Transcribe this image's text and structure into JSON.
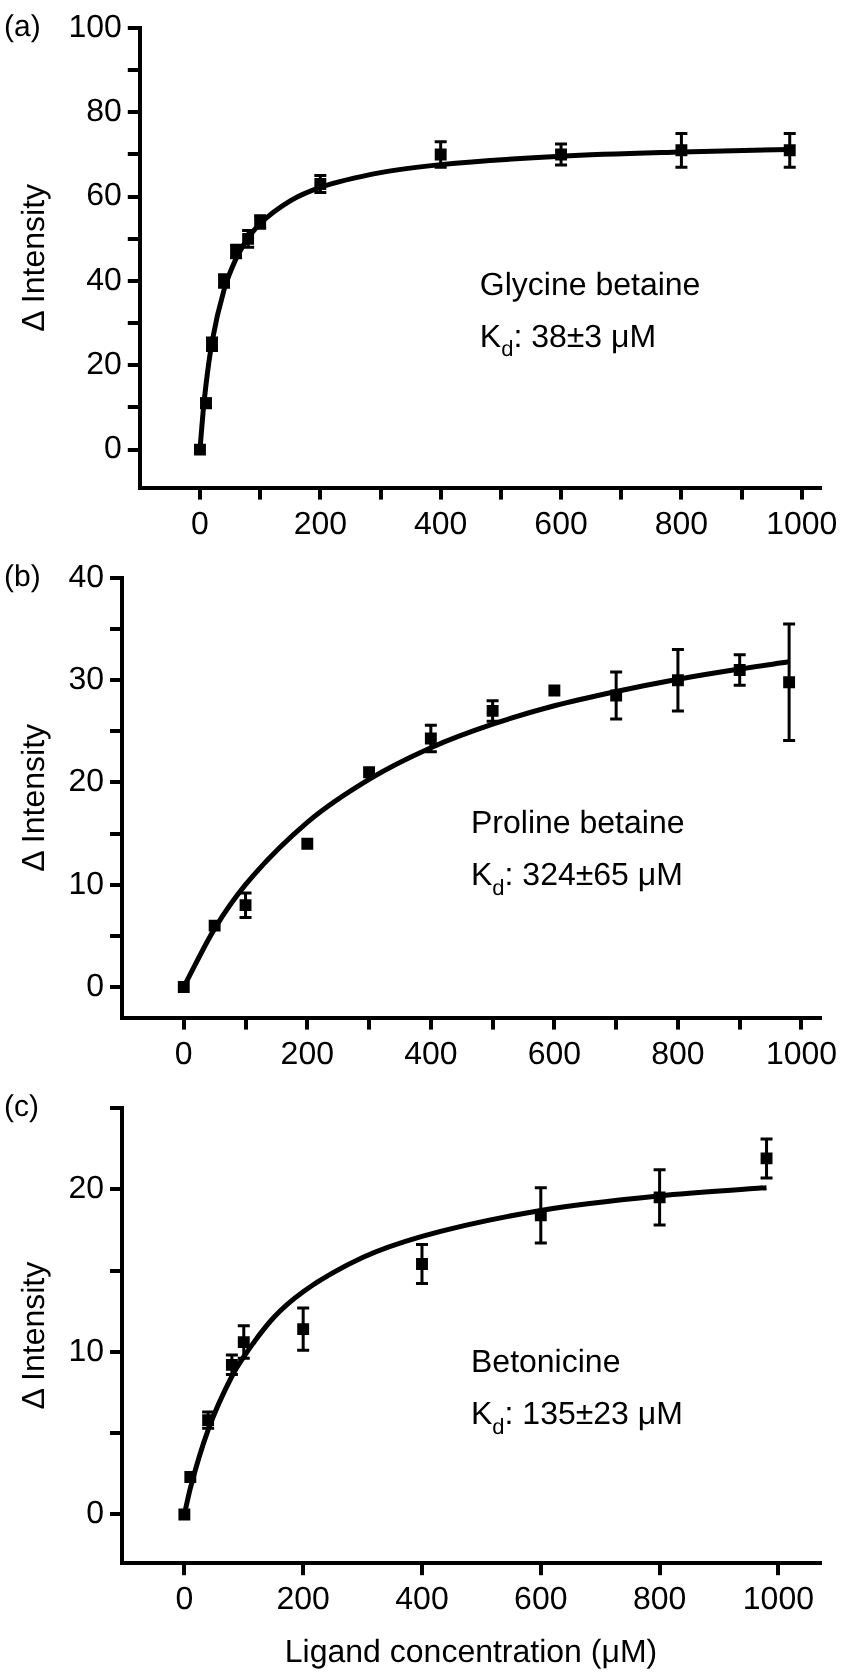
{
  "chart_data": [
    {
      "type": "scatter",
      "ylabel": "Δ Intensity",
      "annotations": [
        "(a)",
        "Glycine betaine",
        "K$_{d}$: 38±3 μM"
      ],
      "xlim": [
        -100,
        1030
      ],
      "xticks": [
        0,
        {
          "value": 100,
          "label": null
        },
        200,
        {
          "value": 300,
          "label": null
        },
        400,
        {
          "value": 500,
          "label": null
        },
        600,
        {
          "value": 700,
          "label": null
        },
        800,
        {
          "value": 900,
          "label": null
        },
        1000
      ],
      "ylim": [
        -9,
        100
      ],
      "yticks": [
        0,
        {
          "value": 10,
          "label": null
        },
        20,
        {
          "value": 30,
          "label": null
        },
        40,
        {
          "value": 50,
          "label": null
        },
        60,
        {
          "value": 70,
          "label": null
        },
        80,
        {
          "value": 90,
          "label": null
        },
        100
      ],
      "grid": false,
      "legend": false,
      "marker": "square",
      "series": [
        {
          "color": "#000000",
          "x": [
            0,
            10,
            20,
            40,
            60,
            80,
            100,
            200,
            400,
            600,
            800,
            980
          ],
          "values": [
            0,
            11,
            25,
            40,
            47,
            50,
            54,
            63,
            70,
            70,
            71,
            71
          ],
          "errors": [
            null,
            1,
            1.5,
            1.5,
            1.5,
            2,
            1.5,
            2,
            3,
            2.5,
            4,
            4
          ]
        },
        {
          "type": "line",
          "color": "#000000",
          "marker": "none",
          "x": [
            0,
            5,
            10,
            20,
            40,
            60,
            80,
            100,
            150,
            200,
            300,
            400,
            600,
            800,
            980
          ],
          "values": [
            0,
            8.6,
            15.4,
            25.5,
            37.9,
            45.3,
            50.2,
            53.6,
            59,
            62.2,
            65.7,
            67.6,
            69.6,
            70.6,
            71.2
          ]
        }
      ]
    },
    {
      "type": "scatter",
      "ylabel": "Δ Intensity",
      "annotations": [
        "(b)",
        "Proline betaine",
        "K$_{d}$: 324±65 μM"
      ],
      "xlim": [
        -100,
        1030
      ],
      "xticks": [
        0,
        {
          "value": 100,
          "label": null
        },
        200,
        {
          "value": 300,
          "label": null
        },
        400,
        {
          "value": 500,
          "label": null
        },
        600,
        {
          "value": 700,
          "label": null
        },
        800,
        {
          "value": 900,
          "label": null
        },
        1000
      ],
      "ylim": [
        -3,
        40
      ],
      "yticks": [
        0,
        {
          "value": 5,
          "label": null
        },
        10,
        {
          "value": 15,
          "label": null
        },
        20,
        {
          "value": 25,
          "label": null
        },
        30,
        {
          "value": 35,
          "label": null
        },
        40
      ],
      "grid": false,
      "legend": false,
      "marker": "square",
      "series": [
        {
          "color": "#000000",
          "x": [
            0,
            50,
            100,
            200,
            300,
            400,
            500,
            600,
            700,
            800,
            900,
            980
          ],
          "values": [
            0,
            6,
            8,
            14,
            21,
            24.3,
            27,
            29,
            28.5,
            30,
            31,
            29.8
          ],
          "errors": [
            null,
            null,
            1.2,
            null,
            null,
            1.3,
            1,
            null,
            2.3,
            3,
            1.5,
            5.7
          ]
        },
        {
          "type": "line",
          "color": "#000000",
          "marker": "none",
          "x": [
            0,
            50,
            100,
            200,
            300,
            400,
            500,
            600,
            700,
            800,
            900,
            980
          ],
          "values": [
            0,
            5.7,
            10,
            16.1,
            20.3,
            23.4,
            25.7,
            27.5,
            28.9,
            30.1,
            31.1,
            31.8
          ]
        }
      ]
    },
    {
      "type": "scatter",
      "ylabel": "Δ Intensity",
      "xlabel": "Ligand concentration (μM)",
      "annotations": [
        "(c)",
        "Betonicine",
        "K$_{d}$: 135±23 μM"
      ],
      "xlim": [
        -105,
        1070
      ],
      "xticks": [
        0,
        200,
        400,
        600,
        800,
        1000
      ],
      "ylim": [
        -3,
        25
      ],
      "yticks": [
        0,
        {
          "value": 5,
          "label": null
        },
        10,
        {
          "value": 15,
          "label": null
        },
        20,
        {
          "value": 25,
          "label": null
        }
      ],
      "grid": false,
      "legend": false,
      "marker": "square",
      "series": [
        {
          "color": "#000000",
          "x": [
            0,
            10,
            40,
            80,
            100,
            200,
            400,
            600,
            800,
            980
          ],
          "values": [
            0,
            2.3,
            5.8,
            9.2,
            10.6,
            11.4,
            15.4,
            18.4,
            19.5,
            21.9
          ],
          "errors": [
            null,
            null,
            0.5,
            0.6,
            1,
            1.3,
            1.2,
            1.7,
            1.7,
            1.2
          ]
        },
        {
          "type": "line",
          "color": "#000000",
          "marker": "none",
          "x": [
            0,
            10,
            40,
            80,
            100,
            150,
            200,
            300,
            400,
            600,
            800,
            980
          ],
          "values": [
            0,
            1.6,
            5.2,
            8.5,
            9.7,
            12.1,
            13.7,
            15.8,
            17.1,
            18.7,
            19.6,
            20.1
          ]
        }
      ]
    }
  ]
}
